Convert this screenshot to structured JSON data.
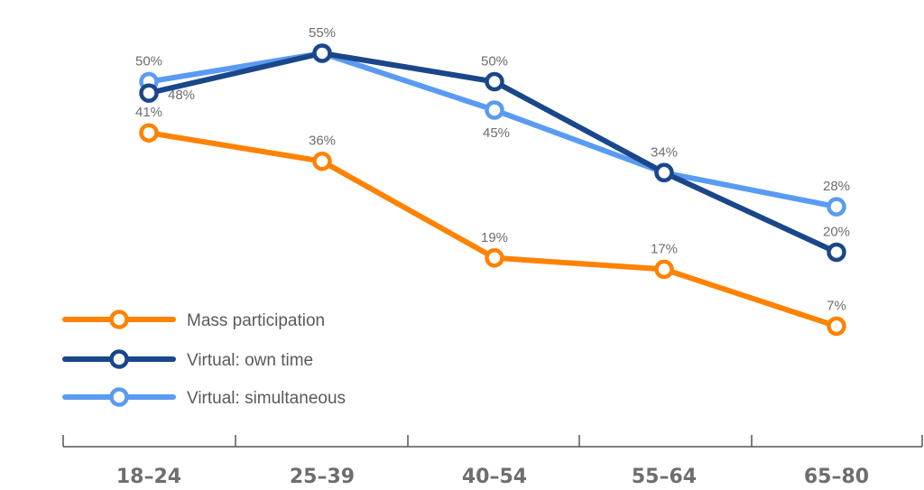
{
  "chart_data": {
    "type": "line",
    "categories": [
      "18–24",
      "25–39",
      "40–54",
      "55–64",
      "65–80"
    ],
    "ylim": [
      0,
      60
    ],
    "grid": false,
    "legend_position": "bottom-left",
    "series": [
      {
        "name": "Mass participation",
        "color": "#ff8200",
        "values": [
          41,
          36,
          19,
          17,
          7
        ],
        "labels": [
          "41%",
          "36%",
          "19%",
          "17%",
          "7%"
        ]
      },
      {
        "name": "Virtual: own time",
        "color": "#19478a",
        "values": [
          48,
          55,
          50,
          34,
          20
        ],
        "labels": [
          "48%",
          "55%",
          "50%",
          "34%",
          "20%"
        ]
      },
      {
        "name": "Virtual: simultaneous",
        "color": "#5a9bf2",
        "values": [
          50,
          55,
          45,
          34,
          28
        ],
        "labels": [
          "50%",
          "",
          "45%",
          "",
          "28%"
        ]
      }
    ]
  }
}
